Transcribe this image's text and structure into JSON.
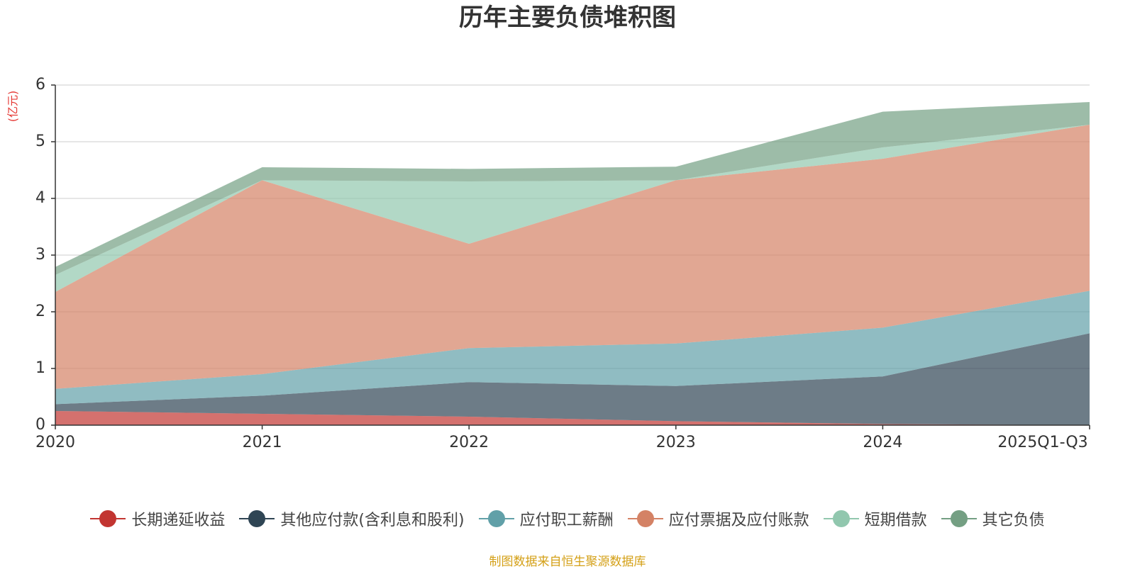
{
  "chart_data": {
    "type": "area",
    "stacked": true,
    "title": "历年主要负债堆积图",
    "ylabel": "(亿元)",
    "xlabel": "",
    "ylim": [
      0,
      6
    ],
    "yticks": [
      0,
      1,
      2,
      3,
      4,
      5,
      6
    ],
    "categories": [
      "2020",
      "2021",
      "2022",
      "2023",
      "2024",
      "2025Q1-Q3"
    ],
    "series": [
      {
        "name": "长期递延收益",
        "color": "#c23531",
        "values": [
          0.25,
          0.2,
          0.15,
          0.07,
          0.02,
          0.0
        ]
      },
      {
        "name": "其他应付款(含利息和股利)",
        "color": "#2f4554",
        "values": [
          0.12,
          0.32,
          0.61,
          0.62,
          0.84,
          1.62
        ]
      },
      {
        "name": "应付职工薪酬",
        "color": "#61a0a8",
        "values": [
          0.27,
          0.38,
          0.6,
          0.75,
          0.86,
          0.75
        ]
      },
      {
        "name": "应付票据及应付账款",
        "color": "#d48265",
        "values": [
          1.71,
          3.42,
          1.84,
          2.88,
          2.98,
          2.93
        ]
      },
      {
        "name": "短期借款",
        "color": "#91c7ae",
        "values": [
          0.3,
          0.0,
          1.1,
          0.0,
          0.2,
          0.0
        ]
      },
      {
        "name": "其它负债",
        "color": "#749f83",
        "values": [
          0.14,
          0.23,
          0.22,
          0.24,
          0.63,
          0.4
        ]
      }
    ],
    "grid": true,
    "legend_position": "bottom"
  },
  "source": "制图数据来自恒生聚源数据库"
}
